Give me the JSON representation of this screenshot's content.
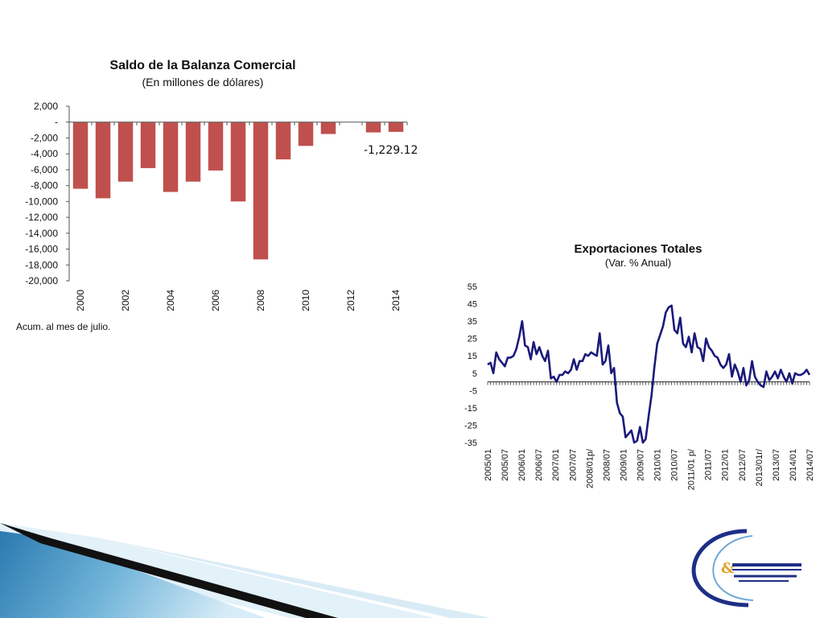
{
  "chart_data": [
    {
      "type": "bar",
      "title": "Saldo de la Balanza Comercial",
      "subtitle": "(En millones de dólares)",
      "xlabel": "",
      "ylabel": "",
      "ylim": [
        -20000,
        2000
      ],
      "yticks": [
        "2,000",
        "-",
        "-2,000",
        "-4,000",
        "-6,000",
        "-8,000",
        "-10,000",
        "-12,000",
        "-14,000",
        "-16,000",
        "-18,000",
        "-20,000"
      ],
      "xtick_labels": [
        "2000",
        "2002",
        "2004",
        "2006",
        "2008",
        "2010",
        "2012",
        "2014"
      ],
      "categories": [
        "2000",
        "2001",
        "2002",
        "2003",
        "2004",
        "2005",
        "2006",
        "2007",
        "2008",
        "2009",
        "2010",
        "2011",
        "2012",
        "2013",
        "2014"
      ],
      "values": [
        -8400,
        -9600,
        -7500,
        -5800,
        -8800,
        -7500,
        -6100,
        -10000,
        -17300,
        -4700,
        -3000,
        -1500,
        null,
        -1300,
        -1229.12
      ],
      "bar_color": "#c0504d",
      "annotation": "-1,229.12",
      "note": "Acum. al mes de  julio."
    },
    {
      "type": "line",
      "title": "Exportaciones  Totales",
      "subtitle": "(Var. % Anual)",
      "xlabel": "",
      "ylabel": "",
      "ylim": [
        -35,
        55
      ],
      "yticks": [
        "55",
        "45",
        "35",
        "25",
        "15",
        "5",
        "-5",
        "-15",
        "-25",
        "-35"
      ],
      "xtick_labels": [
        "2005/01",
        "2005/07",
        "2006/01",
        "2006/07",
        "2007/01",
        "2007/07",
        "2008/01p/",
        "2008/07",
        "2009/01",
        "2009/07",
        "2010/01",
        "2010/07",
        "2011/01 p/",
        "2011/07",
        "2012/01",
        "2012/07",
        "2013/01r/",
        "2013/07",
        "2014/01",
        "2014/07"
      ],
      "line_color": "#1a1a7a",
      "series": [
        {
          "values": [
            10,
            11,
            5,
            17,
            13,
            11,
            9,
            14,
            14,
            15,
            19,
            26,
            35,
            21,
            20,
            13,
            23,
            16,
            20,
            15,
            12,
            18,
            2,
            3,
            0,
            4,
            4,
            6,
            5,
            7,
            13,
            7,
            12,
            12,
            16,
            15,
            17,
            16,
            15,
            28,
            10,
            12,
            21,
            5,
            8,
            -12,
            -18,
            -20,
            -32,
            -30,
            -28,
            -35,
            -34,
            -26,
            -35,
            -33,
            -20,
            -8,
            8,
            22,
            27,
            32,
            40,
            43,
            44,
            30,
            28,
            37,
            22,
            20,
            26,
            17,
            28,
            20,
            19,
            12,
            25,
            20,
            18,
            15,
            14,
            10,
            8,
            10,
            16,
            3,
            10,
            6,
            0,
            8,
            -2,
            1,
            12,
            3,
            0,
            -2,
            -3,
            6,
            1,
            3,
            6,
            2,
            7,
            3,
            0,
            5,
            -1,
            5,
            4,
            4,
            5,
            7,
            4
          ]
        }
      ]
    }
  ]
}
